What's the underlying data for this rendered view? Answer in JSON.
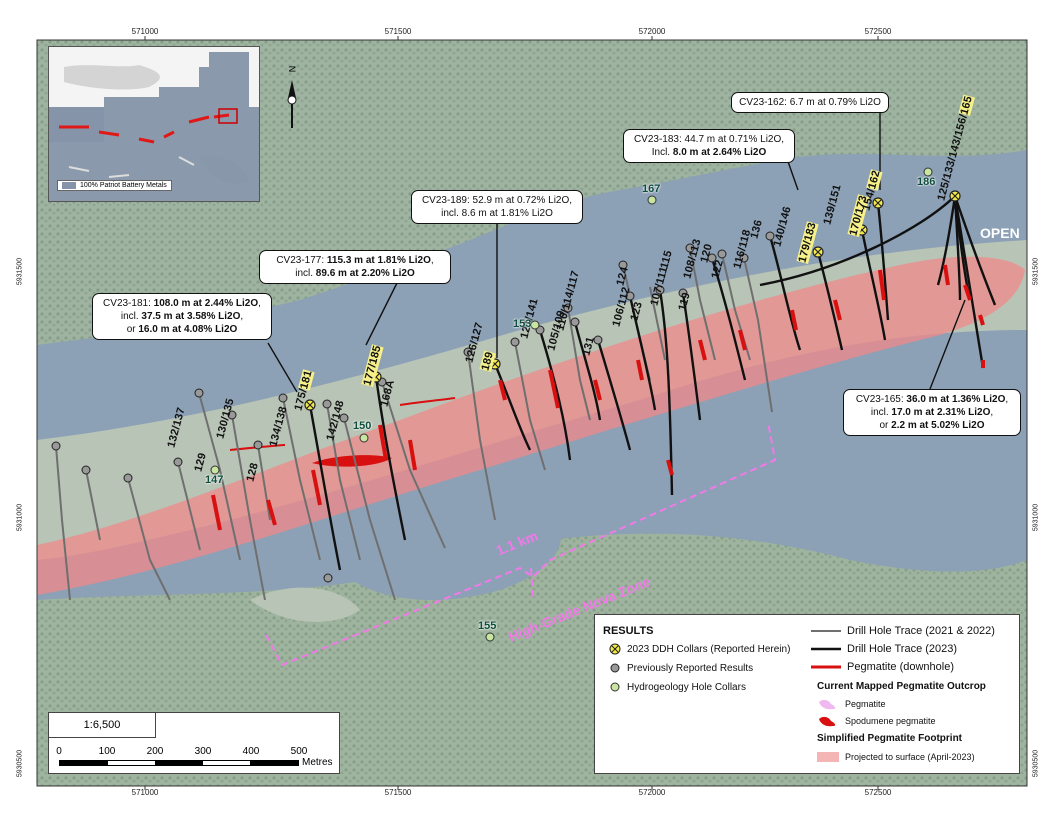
{
  "axes": {
    "top_ticks": [
      "571000",
      "571500",
      "572000",
      "572500"
    ],
    "bottom_ticks": [
      "571000",
      "571500",
      "572000",
      "572500"
    ],
    "left_ticks": [
      "5931500",
      "5931000",
      "5930500"
    ],
    "right_ticks": [
      "5931500",
      "5931000",
      "5930500"
    ]
  },
  "inset": {
    "legend_label": "100% Patriot Battery Metals"
  },
  "callouts": [
    {
      "id": "cv23-162",
      "lines": [
        [
          {
            "t": "CV23-162: 6.7 m at 0.79% Li2O",
            "b": false
          }
        ]
      ]
    },
    {
      "id": "cv23-183",
      "lines": [
        [
          {
            "t": "CV23-183: 44.7 m at 0.71% Li2O,",
            "b": false
          }
        ],
        [
          {
            "t": "Incl. ",
            "b": false
          },
          {
            "t": "8.0 m at 2.64% Li2O",
            "b": true
          }
        ]
      ]
    },
    {
      "id": "cv23-189",
      "lines": [
        [
          {
            "t": "CV23-189: 52.9 m at 0.72% Li2O,",
            "b": false
          }
        ],
        [
          {
            "t": "incl. 8.6 m at 1.81% Li2O",
            "b": false
          }
        ]
      ]
    },
    {
      "id": "cv23-177",
      "lines": [
        [
          {
            "t": "CV23-177: ",
            "b": false
          },
          {
            "t": "115.3 m at 1.81% Li2O",
            "b": true
          },
          {
            "t": ",",
            "b": false
          }
        ],
        [
          {
            "t": "incl. ",
            "b": false
          },
          {
            "t": "89.6 m at 2.20% Li2O",
            "b": true
          }
        ]
      ]
    },
    {
      "id": "cv23-181",
      "lines": [
        [
          {
            "t": "CV23-181: ",
            "b": false
          },
          {
            "t": "108.0 m at 2.44% Li2O",
            "b": true
          },
          {
            "t": ",",
            "b": false
          }
        ],
        [
          {
            "t": "incl. ",
            "b": false
          },
          {
            "t": "37.5 m at 3.58% Li2O",
            "b": true
          },
          {
            "t": ",",
            "b": false
          }
        ],
        [
          {
            "t": "or ",
            "b": false
          },
          {
            "t": "16.0 m at 4.08% Li2O",
            "b": true
          }
        ]
      ]
    },
    {
      "id": "cv23-165",
      "lines": [
        [
          {
            "t": "CV23-165: ",
            "b": false
          },
          {
            "t": "36.0 m at 1.36% Li2O",
            "b": true
          },
          {
            "t": ",",
            "b": false
          }
        ],
        [
          {
            "t": "incl. ",
            "b": false
          },
          {
            "t": "17.0 m at 2.31% Li2O",
            "b": true
          },
          {
            "t": ",",
            "b": false
          }
        ],
        [
          {
            "t": "or ",
            "b": false
          },
          {
            "t": "2.2 m at 5.02% Li2O",
            "b": true
          }
        ]
      ]
    }
  ],
  "hole_labels": [
    {
      "id": "h132",
      "text": "132/137"
    },
    {
      "id": "h129",
      "text": "129"
    },
    {
      "id": "h130",
      "text": "130/135"
    },
    {
      "id": "h128",
      "text": "128"
    },
    {
      "id": "h134",
      "text": "134/138"
    },
    {
      "id": "h175",
      "pre": "175/",
      "hl": "181"
    },
    {
      "id": "h142",
      "text": "142/148"
    },
    {
      "id": "h168",
      "text": "168A"
    },
    {
      "id": "h177",
      "hl": "177/185"
    },
    {
      "id": "h126",
      "text": "126/127"
    },
    {
      "id": "h189",
      "hl": "189"
    },
    {
      "id": "h121",
      "text": "121/141"
    },
    {
      "id": "h110",
      "text": "110/114/117"
    },
    {
      "id": "h105",
      "text": "105/109"
    },
    {
      "id": "h131",
      "text": "131"
    },
    {
      "id": "h106",
      "text": "106/112"
    },
    {
      "id": "h124",
      "text": "124"
    },
    {
      "id": "h123",
      "text": "123"
    },
    {
      "id": "h107",
      "text": "107/111"
    },
    {
      "id": "h115",
      "text": "115"
    },
    {
      "id": "h119",
      "text": "119"
    },
    {
      "id": "h108",
      "text": "108/113"
    },
    {
      "id": "h120",
      "text": "120"
    },
    {
      "id": "h122",
      "text": "122"
    },
    {
      "id": "h116",
      "text": "116/118"
    },
    {
      "id": "h136",
      "text": "136"
    },
    {
      "id": "h140",
      "text": "140/146"
    },
    {
      "id": "h179",
      "hl": "179/183"
    },
    {
      "id": "h139",
      "text": "139/151"
    },
    {
      "id": "h170",
      "hl": "170/173"
    },
    {
      "id": "h154",
      "pre": "154/",
      "hl": "162"
    },
    {
      "id": "h125",
      "pre": "125/133/143/156/",
      "hl": "165"
    }
  ],
  "hydro_labels": [
    {
      "id": "hy147",
      "text": "147"
    },
    {
      "id": "hy150",
      "text": "150"
    },
    {
      "id": "hy153",
      "text": "153"
    },
    {
      "id": "hy155",
      "text": "155"
    },
    {
      "id": "hy167",
      "text": "167"
    },
    {
      "id": "hy186",
      "text": "186"
    }
  ],
  "map_labels": {
    "open": "OPEN",
    "distance": "1.1 km",
    "zone": "High-Grade Nova Zone"
  },
  "scale": {
    "ratio": "1:6,500",
    "ticks": [
      "0",
      "100",
      "200",
      "300",
      "400",
      "500"
    ],
    "unit": "Metres"
  },
  "legend": {
    "title": "RESULTS",
    "items_left": [
      "2023 DDH Collars (Reported Herein)",
      "Previously Reported Results",
      "Hydrogeology Hole Collars"
    ],
    "items_right": [
      "Drill Hole Trace (2021 & 2022)",
      "Drill Hole Trace (2023)",
      "Pegmatite (downhole)"
    ],
    "outcrop_heading": "Current Mapped Pegmatite Outcrop",
    "outcrop_items": [
      "Pegmatite",
      "Spodumene pegmatite"
    ],
    "footprint_heading": "Simplified Pegmatite Footprint",
    "footprint_item": "Projected to surface (April-2023)"
  },
  "colors": {
    "pegmatite_footprint": "#f0a0a0",
    "pegmatite_downhole": "#d81010",
    "pegmatite_outcrop": "#f0b8f0",
    "highlight": "#f5f08a",
    "nova_zone": "#f07ae8",
    "water": "#6f8aa8",
    "land": "#a7b7a7",
    "forest": "#7e9a7e",
    "inset_claims": "#8594a8"
  },
  "icons": [
    "north-arrow-icon",
    "collar-2023-icon",
    "collar-previous-icon",
    "collar-hydro-icon"
  ]
}
